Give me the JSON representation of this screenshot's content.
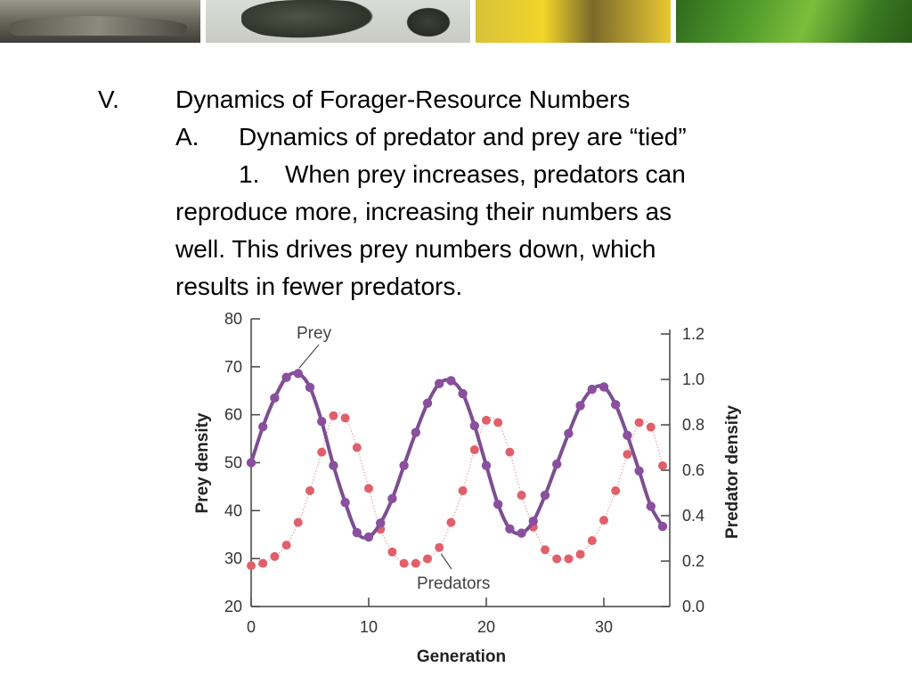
{
  "banner": {
    "photos": [
      "crocodile-photo",
      "ant-photo",
      "flower-photo",
      "leaf-photo"
    ]
  },
  "outline": {
    "roman": "V.",
    "heading": "Dynamics of Forager-Resource Numbers",
    "sub_marker": "A.",
    "sub_text": "Dynamics of predator and prey are “tied”",
    "point_marker": "1.",
    "point_line1": "When prey increases, predators can",
    "point_line2": "reproduce more, increasing their numbers as",
    "point_line3": "well.  This drives prey numbers down, which",
    "point_line4": "results in fewer predators."
  },
  "chart_data": {
    "type": "line",
    "title": "",
    "xlabel": "Generation",
    "ylabel": "Prey density",
    "y2label": "Predator density",
    "xlim": [
      0,
      36
    ],
    "ylim": [
      20,
      80
    ],
    "y2lim": [
      0,
      1.25
    ],
    "x_ticks": [
      "0",
      "10",
      "20",
      "30"
    ],
    "y_ticks": [
      "20",
      "30",
      "40",
      "50",
      "60",
      "70",
      "80"
    ],
    "y2_ticks": [
      "0.0",
      "0.2",
      "0.4",
      "0.6",
      "0.8",
      "1.0",
      "1.2"
    ],
    "series": [
      {
        "name": "Prey",
        "axis": "left",
        "color": "#8a4f9e",
        "x": [
          0,
          1,
          2,
          3,
          4,
          5,
          6,
          7,
          8,
          9,
          10,
          11,
          12,
          13,
          14,
          15,
          16,
          17,
          18,
          19,
          20,
          21,
          22,
          23,
          24,
          25,
          26,
          27,
          28,
          29,
          30,
          31,
          32,
          33,
          34,
          35
        ],
        "values": [
          50,
          57.5,
          63.5,
          67.8,
          68.6,
          65.7,
          58.6,
          49.4,
          41.7,
          35.4,
          34.5,
          37.4,
          42.5,
          49.4,
          56.3,
          62.4,
          66.5,
          67.1,
          64.4,
          57.7,
          49.4,
          41.3,
          36.2,
          35.3,
          37.8,
          43.2,
          49.7,
          56.1,
          61.9,
          65.3,
          65.8,
          62.1,
          55.7,
          48.3,
          40.9,
          36.7
        ]
      },
      {
        "name": "Predators",
        "axis": "right",
        "color": "#e0606a",
        "x": [
          0,
          1,
          2,
          3,
          4,
          5,
          6,
          7,
          8,
          9,
          10,
          11,
          12,
          13,
          14,
          15,
          16,
          17,
          18,
          19,
          20,
          21,
          22,
          23,
          24,
          25,
          26,
          27,
          28,
          29,
          30,
          31,
          32,
          33,
          34,
          35
        ],
        "values": [
          0.18,
          0.19,
          0.22,
          0.27,
          0.37,
          0.51,
          0.68,
          0.84,
          0.83,
          0.7,
          0.52,
          0.34,
          0.24,
          0.19,
          0.19,
          0.21,
          0.26,
          0.37,
          0.51,
          0.69,
          0.82,
          0.81,
          0.68,
          0.49,
          0.35,
          0.25,
          0.21,
          0.21,
          0.23,
          0.29,
          0.38,
          0.51,
          0.67,
          0.81,
          0.79,
          0.62
        ]
      }
    ],
    "annotations": [
      "Prey",
      "Predators"
    ],
    "grid": false,
    "legend": "none"
  }
}
